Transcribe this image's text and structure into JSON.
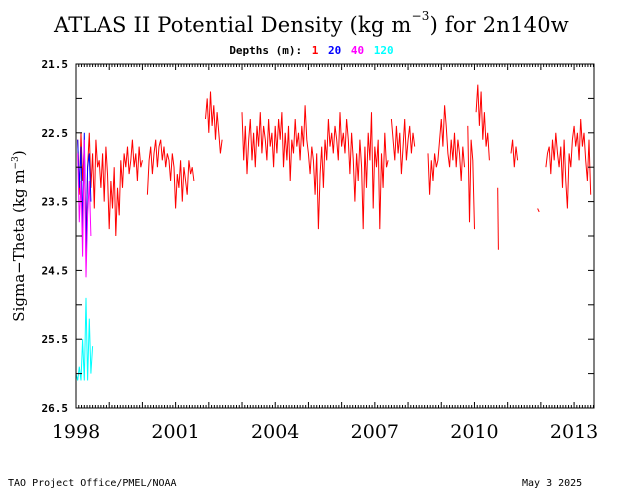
{
  "title": {
    "prefix": "ATLAS II Potential Density (kg m",
    "exponent": "−3",
    "suffix": ") for 2n140w"
  },
  "legend": {
    "label": "Depths (m):",
    "entries": [
      {
        "text": "1",
        "color": "#ff0000"
      },
      {
        "text": "20",
        "color": "#0000ff"
      },
      {
        "text": "40",
        "color": "#ff00ff"
      },
      {
        "text": "120",
        "color": "#00ffff"
      }
    ]
  },
  "ylabel": {
    "prefix": "Sigma−Theta (kg m",
    "exponent": "−3",
    "suffix": ")"
  },
  "footer": {
    "left": "TAO Project Office/PMEL/NOAA",
    "right": "May  3 2025"
  },
  "chart_data": {
    "type": "line",
    "xlabel": "",
    "ylabel": "Sigma-Theta (kg m-3)",
    "xlim": [
      1998.0,
      2013.6
    ],
    "ylim": [
      26.5,
      21.5
    ],
    "y_inverted": true,
    "x_ticks": [
      "1998",
      "2001",
      "2004",
      "2007",
      "2010",
      "2013"
    ],
    "x_tick_values": [
      1998,
      2001,
      2004,
      2007,
      2010,
      2013
    ],
    "y_ticks": [
      "21.5",
      "22.5",
      "23.5",
      "24.5",
      "25.5",
      "26.5"
    ],
    "y_tick_values": [
      21.5,
      22.5,
      23.5,
      24.5,
      25.5,
      26.5
    ],
    "grid": false,
    "legend_position": "top-center",
    "series": [
      {
        "name": "1",
        "color": "#ff0000",
        "segments": [
          {
            "x": [
              1998.05,
              1998.1,
              1998.15,
              1998.2,
              1998.25,
              1998.3,
              1998.35,
              1998.4,
              1998.45,
              1998.5,
              1998.55,
              1998.6,
              1998.65,
              1998.7,
              1998.75,
              1998.8,
              1998.85,
              1998.9,
              1998.95,
              1999.0,
              1999.05,
              1999.1,
              1999.15,
              1999.2,
              1999.25,
              1999.3,
              1999.35,
              1999.4,
              1999.45,
              1999.5,
              1999.55,
              1999.6,
              1999.65,
              1999.7,
              1999.75,
              1999.8,
              1999.85,
              1999.9,
              1999.95,
              2000.0
            ],
            "y": [
              22.6,
              23.4,
              22.5,
              23.2,
              22.7,
              24.1,
              23.0,
              22.5,
              23.3,
              22.8,
              23.6,
              22.6,
              23.0,
              22.9,
              23.3,
              22.8,
              23.5,
              22.7,
              23.1,
              23.9,
              23.2,
              23.6,
              23.0,
              24.0,
              23.3,
              23.7,
              22.9,
              23.3,
              22.8,
              23.0,
              22.7,
              23.1,
              22.9,
              22.6,
              23.0,
              22.8,
              23.2,
              22.7,
              23.0,
              22.9
            ]
          },
          {
            "x": [
              2000.15,
              2000.2,
              2000.25,
              2000.3,
              2000.35,
              2000.4,
              2000.45,
              2000.5,
              2000.55,
              2000.6,
              2000.65,
              2000.7,
              2000.75,
              2000.8,
              2000.85,
              2000.9,
              2000.95,
              2001.0,
              2001.05,
              2001.1,
              2001.15,
              2001.2,
              2001.25,
              2001.3,
              2001.35,
              2001.4,
              2001.45,
              2001.5,
              2001.55
            ],
            "y": [
              23.4,
              22.9,
              22.7,
              23.1,
              22.8,
              22.6,
              23.0,
              22.7,
              22.6,
              22.9,
              22.7,
              23.0,
              22.8,
              22.9,
              23.2,
              22.8,
              23.0,
              23.6,
              23.1,
              23.3,
              22.9,
              23.5,
              23.0,
              23.2,
              23.4,
              22.9,
              23.1,
              23.0,
              23.2
            ]
          },
          {
            "x": [
              2001.9,
              2001.95,
              2002.0,
              2002.05,
              2002.1,
              2002.15,
              2002.2,
              2002.25,
              2002.3,
              2002.35,
              2002.4
            ],
            "y": [
              22.3,
              22.0,
              22.5,
              21.9,
              22.4,
              22.1,
              22.6,
              22.2,
              22.5,
              22.8,
              22.6
            ]
          },
          {
            "x": [
              2003.0,
              2003.05,
              2003.1,
              2003.15,
              2003.2,
              2003.25,
              2003.3,
              2003.35,
              2003.4,
              2003.45,
              2003.5,
              2003.55,
              2003.6,
              2003.65,
              2003.7,
              2003.75,
              2003.8,
              2003.85,
              2003.9,
              2003.95,
              2004.0,
              2004.05,
              2004.1,
              2004.15,
              2004.2,
              2004.25,
              2004.3,
              2004.35,
              2004.4,
              2004.45,
              2004.5,
              2004.55,
              2004.6,
              2004.65,
              2004.7,
              2004.75,
              2004.8,
              2004.85,
              2004.9,
              2004.95,
              2005.0,
              2005.05,
              2005.1,
              2005.15,
              2005.2,
              2005.25,
              2005.3,
              2005.35,
              2005.4,
              2005.45,
              2005.5,
              2005.55,
              2005.6,
              2005.65,
              2005.7,
              2005.75,
              2005.8,
              2005.85,
              2005.9,
              2005.95,
              2006.0,
              2006.05,
              2006.1,
              2006.15,
              2006.2,
              2006.25,
              2006.3,
              2006.35,
              2006.4,
              2006.45,
              2006.5,
              2006.55,
              2006.6,
              2006.65,
              2006.7,
              2006.75,
              2006.8,
              2006.85,
              2006.9,
              2006.95,
              2007.0,
              2007.05,
              2007.1,
              2007.15,
              2007.2,
              2007.25,
              2007.3,
              2007.35,
              2007.4
            ],
            "y": [
              22.2,
              22.9,
              22.4,
              23.1,
              22.6,
              22.3,
              22.9,
              22.5,
              23.0,
              22.4,
              22.7,
              22.2,
              22.8,
              22.4,
              22.6,
              22.9,
              22.3,
              22.7,
              22.5,
              23.0,
              22.4,
              22.8,
              22.3,
              22.6,
              22.2,
              23.0,
              22.5,
              22.9,
              22.4,
              23.2,
              22.6,
              22.8,
              22.3,
              22.7,
              22.5,
              22.9,
              22.4,
              22.7,
              22.1,
              22.6,
              22.8,
              23.1,
              22.7,
              22.9,
              23.4,
              22.8,
              23.9,
              23.1,
              22.7,
              23.3,
              22.6,
              22.9,
              22.3,
              22.7,
              22.5,
              22.8,
              22.4,
              22.6,
              22.9,
              22.2,
              22.7,
              22.5,
              22.8,
              22.3,
              22.6,
              23.1,
              22.5,
              22.9,
              23.5,
              22.8,
              23.2,
              22.6,
              23.0,
              23.9,
              22.7,
              23.3,
              22.5,
              22.9,
              22.2,
              23.6,
              22.7,
              23.0,
              22.6,
              23.9,
              22.8,
              23.3,
              22.5,
              23.0,
              22.9
            ]
          },
          {
            "x": [
              2007.5,
              2007.55,
              2007.6,
              2007.65,
              2007.7,
              2007.75,
              2007.8,
              2007.85,
              2007.9,
              2007.95,
              2008.0,
              2008.05,
              2008.1,
              2008.15,
              2008.2
            ],
            "y": [
              22.3,
              22.6,
              22.9,
              22.4,
              22.8,
              22.5,
              23.1,
              22.7,
              22.3,
              22.9,
              22.6,
              22.4,
              22.8,
              22.5,
              22.7
            ]
          },
          {
            "x": [
              2008.6,
              2008.65,
              2008.7,
              2008.75,
              2008.8,
              2008.85,
              2008.9,
              2008.95,
              2009.0,
              2009.05,
              2009.1,
              2009.15,
              2009.2,
              2009.25,
              2009.3,
              2009.35,
              2009.4,
              2009.45,
              2009.5,
              2009.55,
              2009.6,
              2009.65,
              2009.7
            ],
            "y": [
              22.8,
              23.4,
              22.9,
              23.2,
              22.8,
              23.0,
              22.9,
              22.6,
              22.3,
              22.7,
              22.1,
              22.4,
              22.8,
              23.0,
              22.6,
              22.9,
              22.5,
              23.0,
              22.6,
              22.8,
              23.2,
              22.7,
              23.0
            ]
          },
          {
            "x": [
              2009.8,
              2009.85,
              2009.9,
              2009.95,
              2010.0
            ],
            "y": [
              22.4,
              23.8,
              22.6,
              22.9,
              23.9
            ]
          },
          {
            "x": [
              2010.05,
              2010.1,
              2010.15,
              2010.2,
              2010.25,
              2010.3,
              2010.35,
              2010.4,
              2010.45
            ],
            "y": [
              22.2,
              21.8,
              22.4,
              21.9,
              22.6,
              22.2,
              22.7,
              22.5,
              22.9
            ]
          },
          {
            "x": [
              2010.7,
              2010.72
            ],
            "y": [
              23.3,
              24.2
            ]
          },
          {
            "x": [
              2011.1,
              2011.15,
              2011.2,
              2011.25,
              2011.3
            ],
            "y": [
              22.8,
              22.6,
              23.0,
              22.7,
              22.9
            ]
          },
          {
            "x": [
              2011.9,
              2011.95
            ],
            "y": [
              23.6,
              23.65
            ]
          },
          {
            "x": [
              2012.15,
              2012.2,
              2012.25,
              2012.3,
              2012.35,
              2012.4,
              2012.45,
              2012.5,
              2012.55,
              2012.6,
              2012.65,
              2012.7,
              2012.75,
              2012.8,
              2012.85,
              2012.9,
              2012.95,
              2013.0,
              2013.05,
              2013.1,
              2013.15,
              2013.2,
              2013.25,
              2013.3,
              2013.35,
              2013.4,
              2013.45,
              2013.5
            ],
            "y": [
              23.0,
              22.8,
              22.7,
              23.1,
              22.6,
              22.9,
              22.5,
              22.8,
              23.0,
              22.7,
              23.3,
              22.6,
              23.2,
              23.6,
              22.8,
              23.0,
              22.6,
              22.4,
              22.7,
              22.5,
              22.9,
              22.3,
              22.7,
              22.5,
              22.9,
              23.2,
              22.6,
              23.4
            ]
          }
        ]
      },
      {
        "name": "20",
        "color": "#0000ff",
        "segments": [
          {
            "x": [
              1998.05,
              1998.1,
              1998.15,
              1998.2,
              1998.25,
              1998.3,
              1998.35,
              1998.4,
              1998.45
            ],
            "y": [
              22.6,
              23.3,
              22.7,
              23.9,
              22.5,
              24.3,
              23.0,
              22.8,
              23.5
            ]
          }
        ]
      },
      {
        "name": "40",
        "color": "#ff00ff",
        "segments": [
          {
            "x": [
              1998.05,
              1998.1,
              1998.15,
              1998.2,
              1998.25,
              1998.3,
              1998.35,
              1998.4,
              1998.45
            ],
            "y": [
              22.8,
              23.8,
              23.2,
              24.3,
              22.6,
              24.6,
              23.7,
              23.2,
              24.0
            ]
          }
        ]
      },
      {
        "name": "120",
        "color": "#00ffff",
        "segments": [
          {
            "x": [
              1998.0,
              1998.05,
              1998.1,
              1998.15,
              1998.2,
              1998.25,
              1998.3,
              1998.35,
              1998.4,
              1998.45,
              1998.5
            ],
            "y": [
              26.0,
              26.1,
              25.9,
              26.1,
              25.5,
              26.1,
              24.9,
              26.1,
              25.2,
              26.0,
              25.6
            ]
          }
        ]
      }
    ]
  }
}
